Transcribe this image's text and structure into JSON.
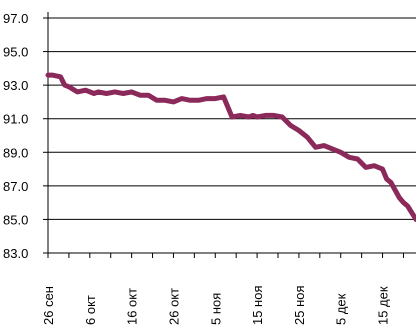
{
  "chart_data": {
    "type": "line",
    "title": "",
    "xlabel": "",
    "ylabel": "",
    "ylim": [
      83.0,
      97.0
    ],
    "yticks": [
      "83.0",
      "85.0",
      "87.0",
      "89.0",
      "91.0",
      "93.0",
      "95.0",
      "97.0"
    ],
    "xticks": [
      "26 сен",
      "6 окт",
      "16 окт",
      "26 окт",
      "5 ноя",
      "15 ноя",
      "25 ноя",
      "5 дек",
      "15 дек"
    ],
    "xrange_days": [
      0,
      88
    ],
    "grid": "horizontal",
    "legend": "none",
    "line_color": "#8b2a5a",
    "series": [
      {
        "x": [
          0,
          1,
          3,
          4,
          5,
          7,
          9,
          11,
          12,
          14,
          16,
          18,
          20,
          22,
          24,
          26,
          28,
          30,
          32,
          34,
          36,
          38,
          40,
          42,
          44,
          46,
          48,
          49,
          50,
          52,
          54,
          56,
          58,
          60,
          62,
          64,
          66,
          68,
          70,
          72,
          74,
          76,
          78,
          80,
          81,
          82,
          84,
          85,
          86,
          88
        ],
        "y": [
          93.6,
          93.6,
          93.5,
          93.0,
          92.9,
          92.6,
          92.7,
          92.5,
          92.6,
          92.5,
          92.6,
          92.5,
          92.6,
          92.4,
          92.4,
          92.1,
          92.1,
          92.0,
          92.2,
          92.1,
          92.1,
          92.2,
          92.2,
          92.3,
          91.1,
          91.2,
          91.1,
          91.2,
          91.1,
          91.2,
          91.2,
          91.1,
          90.6,
          90.3,
          89.9,
          89.3,
          89.4,
          89.2,
          89.0,
          88.7,
          88.6,
          88.1,
          88.2,
          88.0,
          87.4,
          87.2,
          86.3,
          86.0,
          85.8,
          85.0
        ]
      }
    ]
  }
}
